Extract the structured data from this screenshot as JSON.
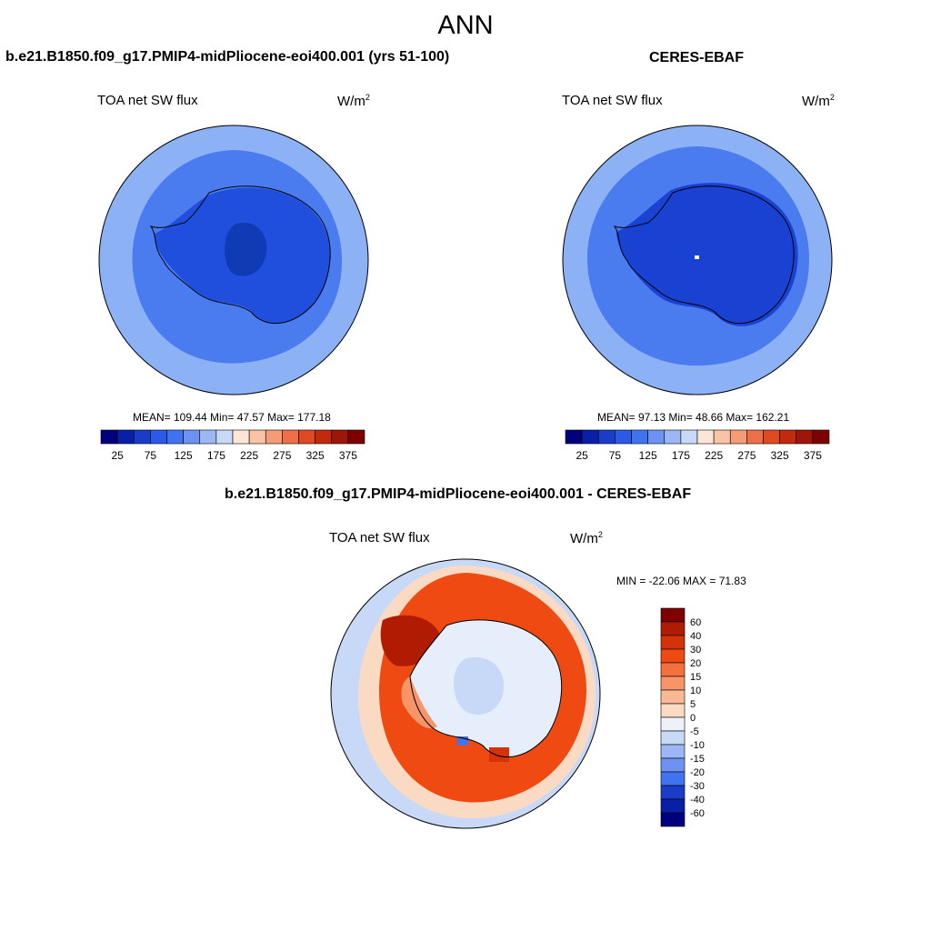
{
  "main_title": "ANN",
  "panels": [
    {
      "title": "b.e21.B1850.f09_g17.PMIP4-midPliocene-eoi400.001 (yrs 51-100)",
      "variable": "TOA net SW flux",
      "units_base": "W/m",
      "units_exp": "2",
      "stats": "MEAN= 109.44  Min=  47.57  Max= 177.18"
    },
    {
      "title": "CERES-EBAF",
      "variable": "TOA net SW flux",
      "units_base": "W/m",
      "units_exp": "2",
      "stats": "MEAN=  97.13  Min=  48.66  Max= 162.21"
    },
    {
      "title": "b.e21.B1850.f09_g17.PMIP4-midPliocene-eoi400.001 - CERES-EBAF",
      "variable": "TOA net SW flux",
      "units_base": "W/m",
      "units_exp": "2",
      "stats": "MIN = -22.06 MAX =  71.83"
    }
  ],
  "chart_data": [
    {
      "type": "heatmap",
      "projection": "south polar stereographic",
      "title": "b.e21.B1850.f09_g17.PMIP4-midPliocene-eoi400.001 (yrs 51-100)",
      "variable": "TOA net SW flux",
      "units": "W/m2",
      "mean": 109.44,
      "min": 47.57,
      "max": 177.18,
      "colorbar_labels": [
        "25",
        "75",
        "125",
        "175",
        "225",
        "275",
        "325",
        "375"
      ],
      "colorbar_colors": [
        "#00007f",
        "#0a1fa8",
        "#1a3cc9",
        "#2c5ae6",
        "#3f73f0",
        "#6d93f2",
        "#9cb7f4",
        "#c7d9f6",
        "#fde6d8",
        "#f9c3a5",
        "#f49c75",
        "#ee7048",
        "#e04a23",
        "#c22a0c",
        "#9e1608",
        "#7f0000"
      ],
      "regions": [
        {
          "zone": "outer ocean ring",
          "value_range": [
            100,
            125
          ]
        },
        {
          "zone": "mid ocean ring",
          "value_range": [
            75,
            100
          ]
        },
        {
          "zone": "antarctic continent",
          "value_range": [
            50,
            75
          ]
        },
        {
          "zone": "east antarctic plateau",
          "value_range": [
            25,
            50
          ]
        }
      ]
    },
    {
      "type": "heatmap",
      "projection": "south polar stereographic",
      "title": "CERES-EBAF",
      "variable": "TOA net SW flux",
      "units": "W/m2",
      "mean": 97.13,
      "min": 48.66,
      "max": 162.21,
      "colorbar_labels": [
        "25",
        "75",
        "125",
        "175",
        "225",
        "275",
        "325",
        "375"
      ],
      "colorbar_colors": [
        "#00007f",
        "#0a1fa8",
        "#1a3cc9",
        "#2c5ae6",
        "#3f73f0",
        "#6d93f2",
        "#9cb7f4",
        "#c7d9f6",
        "#fde6d8",
        "#f9c3a5",
        "#f49c75",
        "#ee7048",
        "#e04a23",
        "#c22a0c",
        "#9e1608",
        "#7f0000"
      ],
      "regions": [
        {
          "zone": "outer ocean ring",
          "value_range": [
            100,
            125
          ]
        },
        {
          "zone": "mid ocean ring",
          "value_range": [
            75,
            100
          ]
        },
        {
          "zone": "antarctic continent",
          "value_range": [
            50,
            75
          ]
        }
      ]
    },
    {
      "type": "heatmap",
      "projection": "south polar stereographic",
      "title": "b.e21.B1850.f09_g17.PMIP4-midPliocene-eoi400.001 - CERES-EBAF",
      "variable": "TOA net SW flux",
      "units": "W/m2",
      "min": -22.06,
      "max": 71.83,
      "colorbar_labels": [
        "60",
        "40",
        "30",
        "20",
        "15",
        "10",
        "5",
        "0",
        "-5",
        "-10",
        "-15",
        "-20",
        "-30",
        "-40",
        "-60"
      ],
      "colorbar_colors": [
        "#7f0000",
        "#b01c03",
        "#d43208",
        "#ee4a12",
        "#f4703c",
        "#f79468",
        "#f9b994",
        "#fbdac4",
        "#eef1f9",
        "#c7d9f6",
        "#9cb7f4",
        "#6d93f2",
        "#3f73f0",
        "#1a3cc9",
        "#0a1fa8",
        "#00007f"
      ],
      "regions": [
        {
          "zone": "southern ocean band",
          "value_range": [
            20,
            40
          ]
        },
        {
          "zone": "weddell / antarctic peninsula",
          "value_range": [
            40,
            60
          ]
        },
        {
          "zone": "antarctic interior",
          "value_range": [
            -5,
            5
          ]
        },
        {
          "zone": "outer latitudes",
          "value_range": [
            -10,
            5
          ]
        }
      ]
    }
  ],
  "colors": {
    "outer_ring": "#8cb1f5",
    "mid_ring": "#4a7cf0",
    "continent_model": "#1f4fdc",
    "plateau_model": "#0f3bb4",
    "continent_obs": "#1a42d2"
  }
}
